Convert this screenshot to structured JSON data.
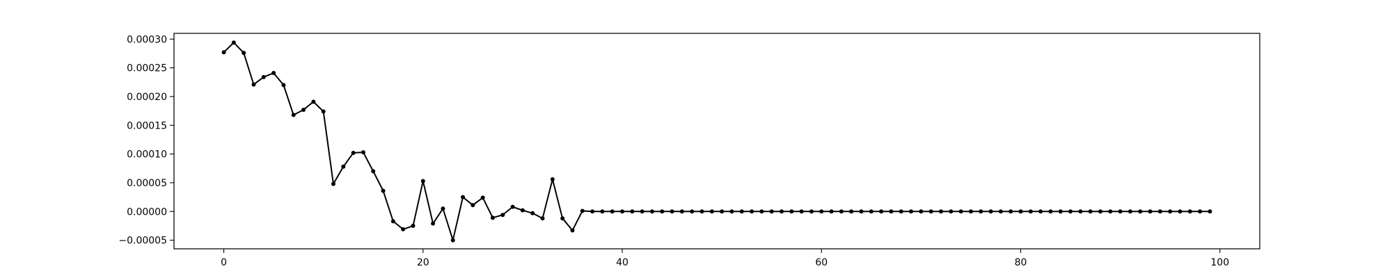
{
  "chart_data": {
    "type": "line",
    "title": "",
    "xlabel": "",
    "ylabel": "",
    "xlim": [
      -5,
      104
    ],
    "ylim": [
      -6.5e-05,
      0.00031
    ],
    "grid": false,
    "x_ticks": [
      0,
      20,
      40,
      60,
      80,
      100
    ],
    "x_tick_labels": [
      "0",
      "20",
      "40",
      "60",
      "80",
      "100"
    ],
    "y_ticks": [
      -5e-05,
      0,
      5e-05,
      0.0001,
      0.00015,
      0.0002,
      0.00025,
      0.0003
    ],
    "y_tick_labels": [
      "−0.00005",
      "0.00000",
      "0.00005",
      "0.00010",
      "0.00015",
      "0.00020",
      "0.00025",
      "0.00030"
    ],
    "series": [
      {
        "color": "#000000",
        "marker": "circle",
        "x": [
          0,
          1,
          2,
          3,
          4,
          5,
          6,
          7,
          8,
          9,
          10,
          11,
          12,
          13,
          14,
          15,
          16,
          17,
          18,
          19,
          20,
          21,
          22,
          23,
          24,
          25,
          26,
          27,
          28,
          29,
          30,
          31,
          32,
          33,
          34,
          35,
          36,
          37,
          38,
          39,
          40,
          41,
          42,
          43,
          44,
          45,
          46,
          47,
          48,
          49,
          50,
          51,
          52,
          53,
          54,
          55,
          56,
          57,
          58,
          59,
          60,
          61,
          62,
          63,
          64,
          65,
          66,
          67,
          68,
          69,
          70,
          71,
          72,
          73,
          74,
          75,
          76,
          77,
          78,
          79,
          80,
          81,
          82,
          83,
          84,
          85,
          86,
          87,
          88,
          89,
          90,
          91,
          92,
          93,
          94,
          95,
          96,
          97,
          98,
          99
        ],
        "values": [
          0.000277,
          0.000294,
          0.000276,
          0.000221,
          0.000234,
          0.000241,
          0.00022,
          0.000168,
          0.000177,
          0.000191,
          0.000174,
          4.8e-05,
          7.8e-05,
          0.000102,
          0.000103,
          7e-05,
          3.6e-05,
          -1.7e-05,
          -3.1e-05,
          -2.5e-05,
          5.3e-05,
          -2.1e-05,
          5e-06,
          -5e-05,
          2.5e-05,
          1.1e-05,
          2.4e-05,
          -1.1e-05,
          -6e-06,
          8e-06,
          2e-06,
          -3e-06,
          -1.2e-05,
          5.6e-05,
          -1.2e-05,
          -3.3e-05,
          1e-06,
          0,
          0,
          0,
          0,
          0,
          0,
          0,
          0,
          0,
          0,
          0,
          0,
          0,
          0,
          0,
          0,
          0,
          0,
          0,
          0,
          0,
          0,
          0,
          0,
          0,
          0,
          0,
          0,
          0,
          0,
          0,
          0,
          0,
          0,
          0,
          0,
          0,
          0,
          0,
          0,
          0,
          0,
          0,
          0,
          0,
          0,
          0,
          0,
          0,
          0,
          0,
          0,
          0,
          0,
          0,
          0,
          0,
          0,
          0,
          0,
          0,
          0,
          0
        ]
      }
    ]
  }
}
